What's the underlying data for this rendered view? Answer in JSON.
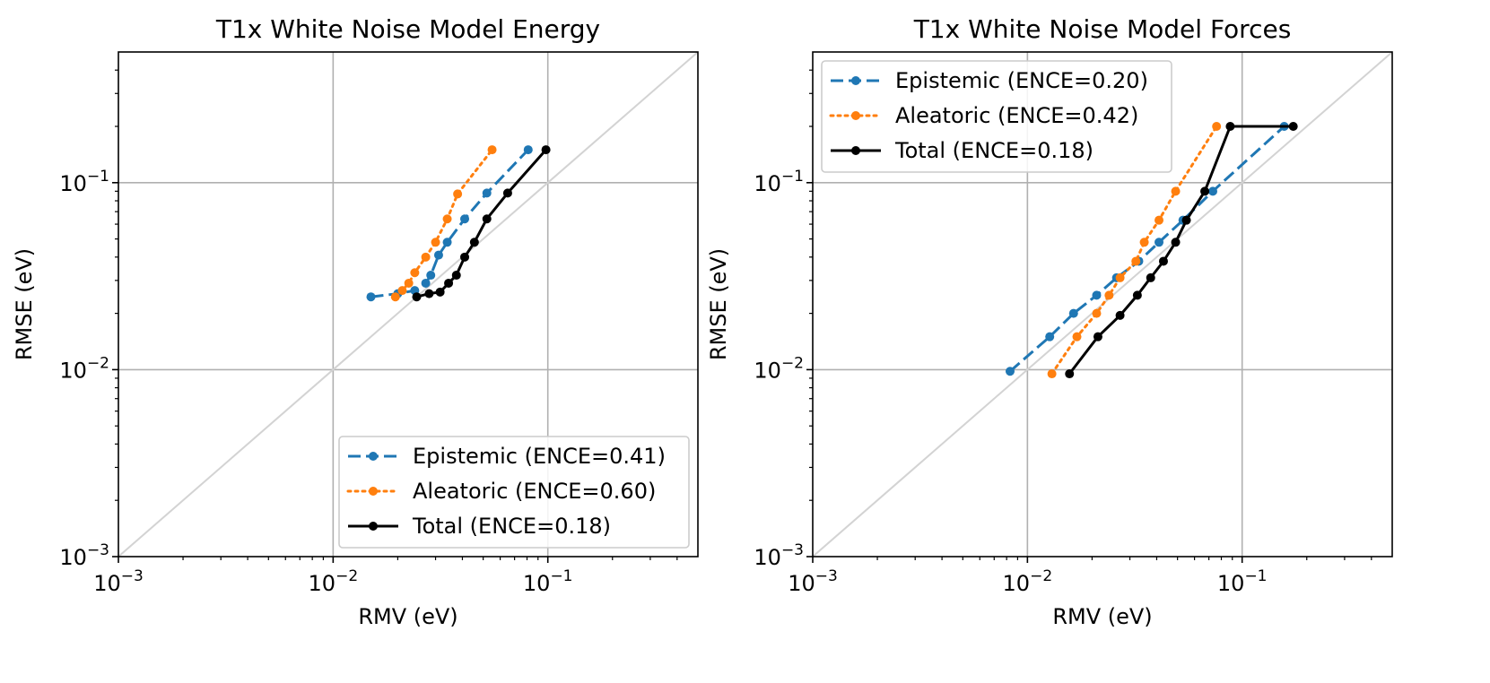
{
  "chart_data": [
    {
      "type": "line",
      "scale": "log-log",
      "title": "T1x White Noise Model Energy",
      "xlabel": "RMV (eV)",
      "ylabel": "RMSE (eV)",
      "xlim": [
        0.001,
        0.5
      ],
      "ylim": [
        0.001,
        0.5
      ],
      "ticks": [
        0.001,
        0.01,
        0.1
      ],
      "tick_labels": [
        "10^-3",
        "10^-2",
        "10^-1"
      ],
      "grid": true,
      "reference_line": "y = x",
      "legend_position": "lower-right",
      "series": [
        {
          "name": "Epistemic (ENCE=0.41)",
          "color": "#1f77b4",
          "linestyle": "dashed",
          "x": [
            0.015,
            0.02,
            0.024,
            0.027,
            0.0285,
            0.031,
            0.034,
            0.041,
            0.052,
            0.081
          ],
          "y": [
            0.0245,
            0.0255,
            0.0265,
            0.029,
            0.032,
            0.041,
            0.048,
            0.064,
            0.088,
            0.15
          ]
        },
        {
          "name": "Aleatoric (ENCE=0.60)",
          "color": "#ff7f0e",
          "linestyle": "dotted",
          "x": [
            0.0195,
            0.021,
            0.0225,
            0.024,
            0.027,
            0.03,
            0.034,
            0.038,
            0.055
          ],
          "y": [
            0.0245,
            0.0265,
            0.029,
            0.033,
            0.04,
            0.048,
            0.064,
            0.087,
            0.15
          ]
        },
        {
          "name": "Total (ENCE=0.18)",
          "color": "#000000",
          "linestyle": "solid",
          "x": [
            0.0245,
            0.028,
            0.0315,
            0.0345,
            0.0375,
            0.041,
            0.0455,
            0.052,
            0.065,
            0.098
          ],
          "y": [
            0.0245,
            0.0255,
            0.026,
            0.029,
            0.032,
            0.04,
            0.048,
            0.064,
            0.088,
            0.15
          ]
        }
      ]
    },
    {
      "type": "line",
      "scale": "log-log",
      "title": "T1x White Noise Model Forces",
      "xlabel": "RMV (eV)",
      "ylabel": "RMSE (eV)",
      "xlim": [
        0.001,
        0.5
      ],
      "ylim": [
        0.001,
        0.5
      ],
      "ticks": [
        0.001,
        0.01,
        0.1
      ],
      "tick_labels": [
        "10^-3",
        "10^-2",
        "10^-1"
      ],
      "grid": true,
      "reference_line": "y = x",
      "legend_position": "upper-left",
      "series": [
        {
          "name": "Epistemic (ENCE=0.20)",
          "color": "#1f77b4",
          "linestyle": "dashed",
          "x": [
            0.0083,
            0.0127,
            0.0164,
            0.021,
            0.026,
            0.033,
            0.041,
            0.053,
            0.073,
            0.157
          ],
          "y": [
            0.0098,
            0.015,
            0.02,
            0.025,
            0.031,
            0.038,
            0.048,
            0.063,
            0.09,
            0.2
          ]
        },
        {
          "name": "Aleatoric (ENCE=0.42)",
          "color": "#ff7f0e",
          "linestyle": "dotted",
          "x": [
            0.013,
            0.017,
            0.021,
            0.024,
            0.027,
            0.032,
            0.035,
            0.041,
            0.049,
            0.076
          ],
          "y": [
            0.0095,
            0.015,
            0.02,
            0.025,
            0.031,
            0.038,
            0.048,
            0.063,
            0.09,
            0.2
          ]
        },
        {
          "name": "Total (ENCE=0.18)",
          "color": "#000000",
          "linestyle": "solid",
          "x": [
            0.0157,
            0.0213,
            0.027,
            0.0325,
            0.0375,
            0.043,
            0.049,
            0.055,
            0.067,
            0.088,
            0.173
          ],
          "y": [
            0.0095,
            0.015,
            0.0195,
            0.025,
            0.031,
            0.038,
            0.048,
            0.063,
            0.09,
            0.2,
            0.2
          ]
        }
      ]
    }
  ]
}
